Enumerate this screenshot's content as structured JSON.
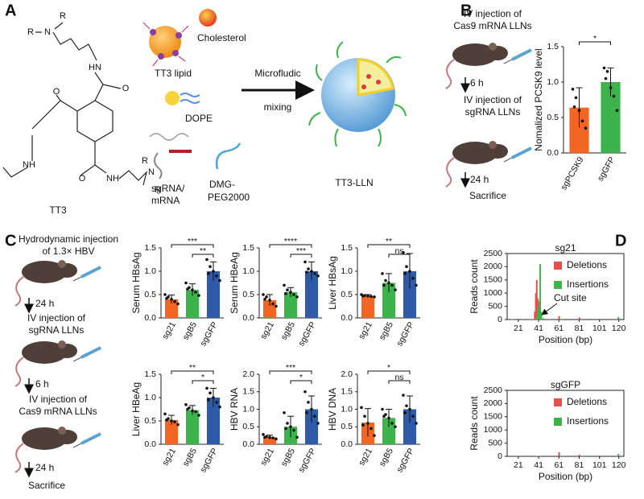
{
  "panel_labels": [
    "A",
    "B",
    "C",
    "D"
  ],
  "panel_a": {
    "structure_atoms": [
      "R",
      "R",
      "N",
      "HN",
      "O",
      "O",
      "NH",
      "O",
      "NH",
      "N",
      "R",
      "R"
    ],
    "compound": "TT3",
    "components": [
      "TT3 lipid",
      "Cholesterol",
      "DOPE",
      "sgRNA/",
      "mRNA",
      "DMG-",
      "PEG2000"
    ],
    "process": [
      "Microfludic",
      "mixing"
    ],
    "product": "TT3-LLN"
  },
  "panel_b": {
    "steps": [
      "IV injection of",
      "Cas9 mRNA LLNs",
      "6 h",
      "IV injection of",
      "sgRNA LLNs",
      "24 h",
      "Sacrifice"
    ]
  },
  "panel_c": {
    "steps": [
      "Hydrodynamic injection",
      "of 1.3× HBV",
      "24 h",
      "IV injection of",
      "sgRNA LLNs",
      "6 h",
      "IV injection of",
      "Cas9 mRNA LLNs",
      "24 h",
      "Sacrifice"
    ]
  },
  "chart_data": [
    {
      "type": "bar",
      "ylabel": "Nomalized PCSK9 level",
      "categories": [
        "sgPCSK9",
        "sgGFP"
      ],
      "colors": [
        "#f26522",
        "#3cb44b"
      ],
      "values": [
        0.64,
        1.0
      ],
      "errors": [
        0.28,
        0.2
      ],
      "points": [
        [
          0.9,
          0.78,
          0.6,
          0.45,
          0.35,
          0.65
        ],
        [
          1.2,
          1.15,
          0.92,
          0.8,
          0.6,
          1.05
        ]
      ],
      "ylim": [
        0,
        1.5
      ],
      "yticks": [
        {
          "value": 0,
          "label": "0.0"
        },
        {
          "value": 0.5,
          "label": "0.5"
        },
        {
          "value": 1,
          "label": "1.0"
        },
        {
          "value": 1.5,
          "label": "1.5"
        }
      ],
      "significance": [
        "*"
      ]
    },
    {
      "type": "bar",
      "ylabel": "Serum HBsAg",
      "categories": [
        "sg21",
        "sgB5",
        "sgGFP"
      ],
      "colors": [
        "#f26522",
        "#3cb44b",
        "#2e5aa8"
      ],
      "values": [
        0.4,
        0.6,
        1.0
      ],
      "errors": [
        0.09,
        0.13,
        0.2
      ],
      "points": [
        [
          0.5,
          0.45,
          0.4,
          0.35,
          0.3,
          0.42
        ],
        [
          0.75,
          0.65,
          0.6,
          0.55,
          0.48,
          0.62
        ],
        [
          1.25,
          1.1,
          1.0,
          0.9,
          0.8,
          0.95
        ]
      ],
      "ylim": [
        0,
        1.5
      ],
      "yticks": [
        {
          "value": 0,
          "label": "0.0"
        },
        {
          "value": 0.5,
          "label": "0.5"
        },
        {
          "value": 1,
          "label": "1.0"
        },
        {
          "value": 1.5,
          "label": "1.5"
        }
      ],
      "significance": [
        "***",
        "**"
      ]
    },
    {
      "type": "bar",
      "ylabel": "Serum HBeAg",
      "categories": [
        "sg21",
        "sgB5",
        "sgGFP"
      ],
      "colors": [
        "#f26522",
        "#3cb44b",
        "#2e5aa8"
      ],
      "values": [
        0.38,
        0.55,
        1.0
      ],
      "errors": [
        0.12,
        0.1,
        0.2
      ],
      "points": [
        [
          0.5,
          0.45,
          0.38,
          0.3,
          0.25,
          0.4
        ],
        [
          0.7,
          0.6,
          0.55,
          0.5,
          0.45,
          0.52
        ],
        [
          1.2,
          1.05,
          1.0,
          0.95,
          0.9,
          0.98
        ]
      ],
      "ylim": [
        0,
        1.5
      ],
      "yticks": [
        {
          "value": 0,
          "label": "0.0"
        },
        {
          "value": 0.5,
          "label": "0.5"
        },
        {
          "value": 1,
          "label": "1.0"
        },
        {
          "value": 1.5,
          "label": "1.5"
        }
      ],
      "significance": [
        "****",
        "***"
      ]
    },
    {
      "type": "bar",
      "ylabel": "Liver HBsAg",
      "categories": [
        "sg21",
        "sgB5",
        "sgGFP"
      ],
      "colors": [
        "#f26522",
        "#3cb44b",
        "#2e5aa8"
      ],
      "values": [
        0.47,
        0.75,
        1.0
      ],
      "errors": [
        0.03,
        0.2,
        0.38
      ],
      "points": [
        [
          0.5,
          0.48,
          0.47,
          0.46,
          0.45,
          0.47
        ],
        [
          0.95,
          0.8,
          0.75,
          0.7,
          0.6,
          0.7
        ],
        [
          1.4,
          1.1,
          1.0,
          0.85,
          0.7,
          0.95
        ]
      ],
      "ylim": [
        0,
        1.5
      ],
      "yticks": [
        {
          "value": 0,
          "label": "0.0"
        },
        {
          "value": 0.5,
          "label": "0.5"
        },
        {
          "value": 1,
          "label": "1.0"
        },
        {
          "value": 1.5,
          "label": "1.5"
        }
      ],
      "significance": [
        "**",
        "ns"
      ]
    },
    {
      "type": "bar",
      "ylabel": "Liver HBeAg",
      "categories": [
        "sg21",
        "sgB5",
        "sgGFP"
      ],
      "colors": [
        "#f26522",
        "#3cb44b",
        "#2e5aa8"
      ],
      "values": [
        0.52,
        0.73,
        1.0
      ],
      "errors": [
        0.1,
        0.1,
        0.2
      ],
      "points": [
        [
          0.65,
          0.55,
          0.5,
          0.48,
          0.42,
          0.52
        ],
        [
          0.85,
          0.78,
          0.72,
          0.7,
          0.62,
          0.75
        ],
        [
          1.2,
          1.1,
          1.0,
          0.9,
          0.8,
          0.95
        ]
      ],
      "ylim": [
        0,
        1.5
      ],
      "yticks": [
        {
          "value": 0,
          "label": "0.0"
        },
        {
          "value": 0.5,
          "label": "0.5"
        },
        {
          "value": 1,
          "label": "1.0"
        },
        {
          "value": 1.5,
          "label": "1.5"
        }
      ],
      "significance": [
        "**",
        "*"
      ]
    },
    {
      "type": "bar",
      "ylabel": "HBV RNA",
      "categories": [
        "sg21",
        "sgB5",
        "sgGFP"
      ],
      "colors": [
        "#f26522",
        "#3cb44b",
        "#2e5aa8"
      ],
      "values": [
        0.2,
        0.5,
        1.0
      ],
      "errors": [
        0.06,
        0.3,
        0.38
      ],
      "points": [
        [
          0.28,
          0.22,
          0.2,
          0.18,
          0.15,
          0.2
        ],
        [
          0.9,
          0.6,
          0.5,
          0.4,
          0.2,
          0.45
        ],
        [
          1.5,
          1.2,
          1.0,
          0.8,
          0.6,
          0.9
        ]
      ],
      "ylim": [
        0,
        2
      ],
      "yticks": [
        {
          "value": 0,
          "label": "0.0"
        },
        {
          "value": 0.5,
          "label": "0.5"
        },
        {
          "value": 1,
          "label": "1.0"
        },
        {
          "value": 1.5,
          "label": "1.5"
        },
        {
          "value": 2,
          "label": "2.0"
        }
      ],
      "significance": [
        "***",
        "*"
      ]
    },
    {
      "type": "bar",
      "ylabel": "HBV DNA",
      "categories": [
        "sg21",
        "sgB5",
        "sgGFP"
      ],
      "colors": [
        "#f26522",
        "#3cb44b",
        "#2e5aa8"
      ],
      "values": [
        0.62,
        0.75,
        1.0
      ],
      "errors": [
        0.4,
        0.25,
        0.38
      ],
      "points": [
        [
          1.05,
          0.8,
          0.6,
          0.45,
          0.25,
          0.55
        ],
        [
          1.0,
          0.85,
          0.75,
          0.6,
          0.5,
          0.8
        ],
        [
          1.4,
          1.1,
          1.0,
          0.8,
          0.6,
          0.9
        ]
      ],
      "ylim": [
        0,
        2
      ],
      "yticks": [
        {
          "value": 0,
          "label": "0.0"
        },
        {
          "value": 0.5,
          "label": "0.5"
        },
        {
          "value": 1,
          "label": "1.0"
        },
        {
          "value": 1.5,
          "label": "1.5"
        },
        {
          "value": 2,
          "label": "2.0"
        }
      ],
      "significance": [
        "*",
        "ns"
      ]
    },
    {
      "type": "bar",
      "title": "sg21",
      "xlabel": "Position (bp)",
      "ylabel": "Reads count",
      "annotation": "Cut site",
      "x": [
        15,
        25,
        33,
        38,
        39,
        40,
        41,
        42,
        44,
        50,
        62,
        82,
        118
      ],
      "series": [
        {
          "name": "Deletions",
          "color": "#e8504b",
          "values": [
            15,
            10,
            20,
            300,
            1000,
            1500,
            800,
            200,
            60,
            20,
            130,
            80,
            20
          ]
        },
        {
          "name": "Insertions",
          "color": "#3bb54a",
          "values": [
            10,
            5,
            10,
            100,
            400,
            700,
            2100,
            300,
            50,
            10,
            20,
            10,
            90
          ]
        }
      ],
      "xlim": [
        10,
        125
      ],
      "xticks": [
        21,
        41,
        61,
        81,
        101,
        120
      ],
      "ylim": [
        0,
        2500
      ],
      "yticks": [
        0,
        500,
        1000,
        1500,
        2000,
        2500
      ]
    },
    {
      "type": "bar",
      "title": "sgGFP",
      "xlabel": "Position (bp)",
      "ylabel": "Reads count",
      "x": [
        20,
        40,
        62,
        82,
        118
      ],
      "series": [
        {
          "name": "Deletions",
          "color": "#e8504b",
          "values": [
            10,
            15,
            160,
            60,
            20
          ]
        },
        {
          "name": "Insertions",
          "color": "#3bb54a",
          "values": [
            5,
            10,
            20,
            10,
            90
          ]
        }
      ],
      "xlim": [
        10,
        125
      ],
      "xticks": [
        21,
        41,
        61,
        81,
        101,
        120
      ],
      "ylim": [
        0,
        2500
      ],
      "yticks": [
        0,
        500,
        1000,
        1500,
        2000,
        2500
      ]
    }
  ]
}
